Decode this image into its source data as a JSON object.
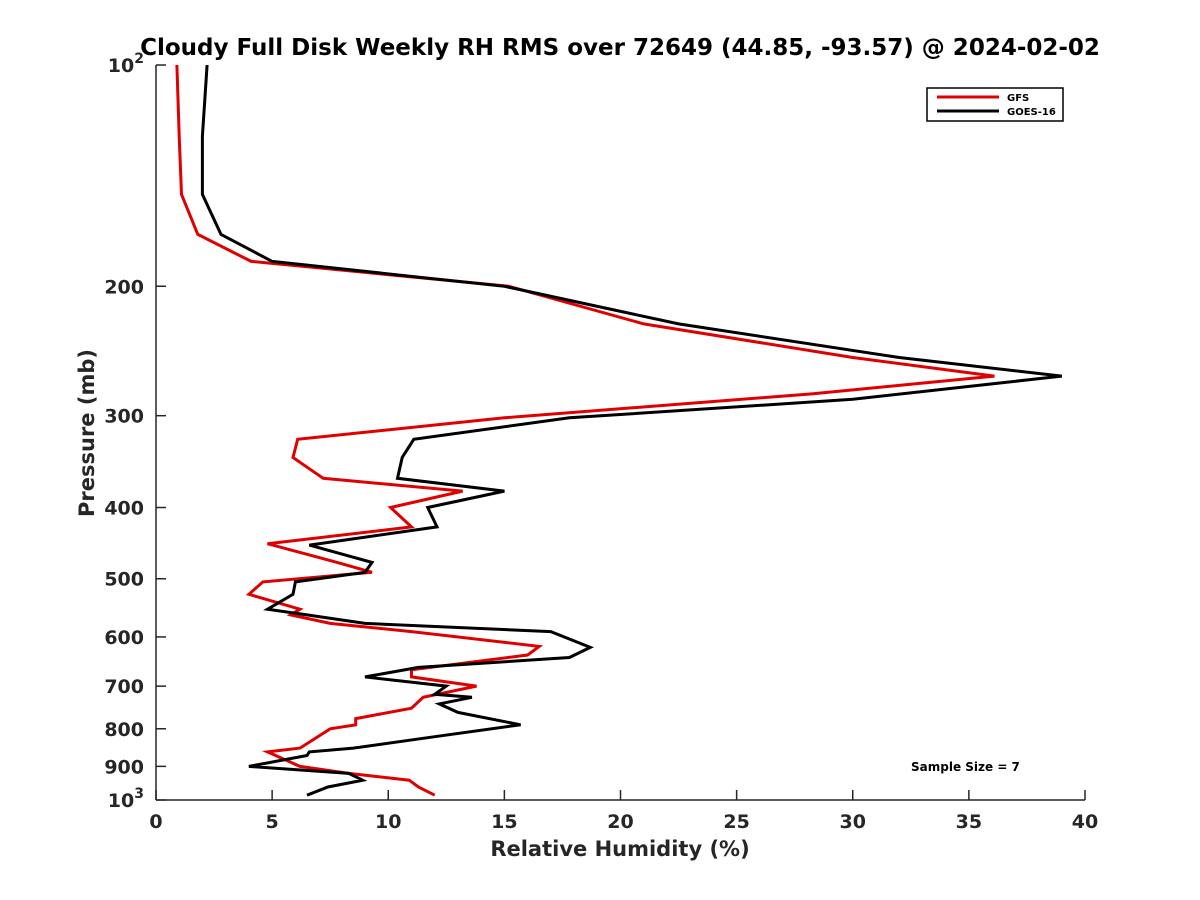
{
  "chart_data": {
    "type": "line",
    "title": "Cloudy Full Disk Weekly RH RMS over 72649 (44.85, -93.57) @ 2024-02-02",
    "xlabel": "Relative Humidity (%)",
    "ylabel": "Pressure (mb)",
    "xlim": [
      0,
      40
    ],
    "ylim": [
      100,
      1000
    ],
    "y_scale": "log",
    "y_reversed": true,
    "grid": false,
    "legend_position": "top-right",
    "x_ticks": [
      "0",
      "5",
      "10",
      "15",
      "20",
      "25",
      "30",
      "35",
      "40"
    ],
    "y_ticks": [
      {
        "value": 100,
        "base": "10",
        "exp": "2"
      },
      {
        "value": 200,
        "label": "200"
      },
      {
        "value": 300,
        "label": "300"
      },
      {
        "value": 400,
        "label": "400"
      },
      {
        "value": 500,
        "label": "500"
      },
      {
        "value": 600,
        "label": "600"
      },
      {
        "value": 700,
        "label": "700"
      },
      {
        "value": 800,
        "label": "800"
      },
      {
        "value": 900,
        "label": "900"
      },
      {
        "value": 1000,
        "base": "10",
        "exp": "3"
      }
    ],
    "series": [
      {
        "name": "GFS",
        "color": "#e00000",
        "points": [
          [
            0.9,
            100
          ],
          [
            1.0,
            125
          ],
          [
            1.1,
            150
          ],
          [
            1.8,
            170
          ],
          [
            4.1,
            185
          ],
          [
            15.2,
            200
          ],
          [
            21.0,
            225
          ],
          [
            30.0,
            250
          ],
          [
            36.1,
            265
          ],
          [
            28.3,
            280
          ],
          [
            15.0,
            302
          ],
          [
            6.1,
            323
          ],
          [
            5.9,
            342
          ],
          [
            7.2,
            365
          ],
          [
            13.2,
            380
          ],
          [
            10.1,
            400
          ],
          [
            11.0,
            425
          ],
          [
            4.8,
            448
          ],
          [
            7.8,
            475
          ],
          [
            9.3,
            490
          ],
          [
            4.6,
            505
          ],
          [
            4.0,
            525
          ],
          [
            6.2,
            550
          ],
          [
            5.8,
            560
          ],
          [
            7.5,
            575
          ],
          [
            11.0,
            590
          ],
          [
            16.5,
            618
          ],
          [
            16.0,
            635
          ],
          [
            11.0,
            665
          ],
          [
            11.0,
            680
          ],
          [
            13.8,
            700
          ],
          [
            11.5,
            725
          ],
          [
            11.0,
            750
          ],
          [
            8.6,
            775
          ],
          [
            8.6,
            790
          ],
          [
            7.5,
            800
          ],
          [
            6.2,
            850
          ],
          [
            4.8,
            860
          ],
          [
            6.2,
            900
          ],
          [
            8.3,
            920
          ],
          [
            10.9,
            940
          ],
          [
            11.3,
            960
          ],
          [
            12.0,
            985
          ]
        ]
      },
      {
        "name": "GOES-16",
        "color": "#000000",
        "points": [
          [
            2.2,
            100
          ],
          [
            2.0,
            125
          ],
          [
            2.0,
            150
          ],
          [
            2.8,
            170
          ],
          [
            5.0,
            185
          ],
          [
            15.0,
            200
          ],
          [
            22.5,
            225
          ],
          [
            32.0,
            250
          ],
          [
            39.0,
            265
          ],
          [
            30.0,
            285
          ],
          [
            17.8,
            302
          ],
          [
            11.1,
            323
          ],
          [
            10.6,
            342
          ],
          [
            10.4,
            365
          ],
          [
            15.0,
            380
          ],
          [
            11.7,
            400
          ],
          [
            12.1,
            425
          ],
          [
            6.6,
            450
          ],
          [
            9.3,
            475
          ],
          [
            9.0,
            490
          ],
          [
            6.0,
            505
          ],
          [
            5.9,
            525
          ],
          [
            4.8,
            550
          ],
          [
            6.5,
            560
          ],
          [
            9.0,
            575
          ],
          [
            17.0,
            590
          ],
          [
            18.7,
            620
          ],
          [
            17.8,
            640
          ],
          [
            11.3,
            660
          ],
          [
            9.0,
            680
          ],
          [
            12.5,
            700
          ],
          [
            12.0,
            718
          ],
          [
            13.6,
            725
          ],
          [
            12.2,
            740
          ],
          [
            13.0,
            760
          ],
          [
            15.7,
            790
          ],
          [
            12.0,
            820
          ],
          [
            8.5,
            850
          ],
          [
            6.6,
            860
          ],
          [
            6.5,
            870
          ],
          [
            4.0,
            900
          ],
          [
            8.3,
            920
          ],
          [
            8.9,
            940
          ],
          [
            7.4,
            960
          ],
          [
            6.5,
            985
          ]
        ]
      }
    ],
    "annotation": "Sample Size = 7"
  }
}
